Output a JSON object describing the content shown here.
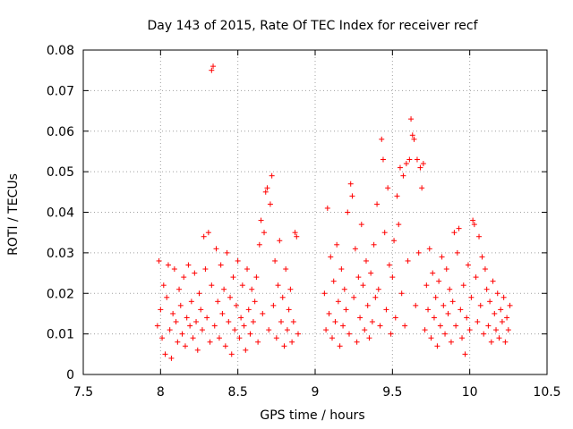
{
  "chart_data": {
    "type": "scatter",
    "title": "Day 143 of 2015, Rate Of TEC Index for receiver recf",
    "xlabel": "GPS time / hours",
    "ylabel": "ROTI / TECUs",
    "xlim": [
      7.5,
      10.5
    ],
    "ylim": [
      0,
      0.08
    ],
    "xticks": [
      "7.5",
      "8",
      "8.5",
      "9",
      "9.5",
      "10",
      "10.5"
    ],
    "yticks": [
      "0",
      "0.01",
      "0.02",
      "0.03",
      "0.04",
      "0.05",
      "0.06",
      "0.07",
      "0.08"
    ],
    "grid": true,
    "marker": "+",
    "marker_color": "#ff0000",
    "series": [
      {
        "name": "ROTI",
        "points": [
          [
            7.98,
            0.012
          ],
          [
            7.99,
            0.028
          ],
          [
            8.0,
            0.016
          ],
          [
            8.01,
            0.009
          ],
          [
            8.02,
            0.022
          ],
          [
            8.03,
            0.005
          ],
          [
            8.04,
            0.019
          ],
          [
            8.05,
            0.027
          ],
          [
            8.06,
            0.011
          ],
          [
            8.07,
            0.004
          ],
          [
            8.08,
            0.015
          ],
          [
            8.09,
            0.026
          ],
          [
            8.1,
            0.013
          ],
          [
            8.11,
            0.008
          ],
          [
            8.12,
            0.021
          ],
          [
            8.13,
            0.017
          ],
          [
            8.14,
            0.01
          ],
          [
            8.15,
            0.024
          ],
          [
            8.16,
            0.007
          ],
          [
            8.17,
            0.014
          ],
          [
            8.18,
            0.027
          ],
          [
            8.19,
            0.012
          ],
          [
            8.2,
            0.018
          ],
          [
            8.21,
            0.009
          ],
          [
            8.22,
            0.025
          ],
          [
            8.23,
            0.013
          ],
          [
            8.24,
            0.006
          ],
          [
            8.25,
            0.02
          ],
          [
            8.26,
            0.016
          ],
          [
            8.27,
            0.011
          ],
          [
            8.28,
            0.034
          ],
          [
            8.29,
            0.026
          ],
          [
            8.3,
            0.014
          ],
          [
            8.31,
            0.035
          ],
          [
            8.32,
            0.008
          ],
          [
            8.33,
            0.022
          ],
          [
            8.33,
            0.075
          ],
          [
            8.34,
            0.076
          ],
          [
            8.35,
            0.012
          ],
          [
            8.36,
            0.031
          ],
          [
            8.37,
            0.018
          ],
          [
            8.38,
            0.009
          ],
          [
            8.39,
            0.027
          ],
          [
            8.4,
            0.015
          ],
          [
            8.41,
            0.021
          ],
          [
            8.42,
            0.007
          ],
          [
            8.43,
            0.03
          ],
          [
            8.44,
            0.013
          ],
          [
            8.45,
            0.019
          ],
          [
            8.46,
            0.005
          ],
          [
            8.47,
            0.024
          ],
          [
            8.48,
            0.011
          ],
          [
            8.49,
            0.017
          ],
          [
            8.5,
            0.028
          ],
          [
            8.51,
            0.009
          ],
          [
            8.52,
            0.014
          ],
          [
            8.53,
            0.022
          ],
          [
            8.54,
            0.012
          ],
          [
            8.55,
            0.006
          ],
          [
            8.56,
            0.026
          ],
          [
            8.57,
            0.016
          ],
          [
            8.58,
            0.01
          ],
          [
            8.59,
            0.021
          ],
          [
            8.6,
            0.013
          ],
          [
            8.61,
            0.018
          ],
          [
            8.62,
            0.024
          ],
          [
            8.63,
            0.008
          ],
          [
            8.64,
            0.032
          ],
          [
            8.65,
            0.038
          ],
          [
            8.66,
            0.015
          ],
          [
            8.67,
            0.035
          ],
          [
            8.68,
            0.045
          ],
          [
            8.69,
            0.046
          ],
          [
            8.7,
            0.011
          ],
          [
            8.71,
            0.042
          ],
          [
            8.72,
            0.049
          ],
          [
            8.73,
            0.017
          ],
          [
            8.74,
            0.028
          ],
          [
            8.75,
            0.009
          ],
          [
            8.76,
            0.022
          ],
          [
            8.77,
            0.033
          ],
          [
            8.78,
            0.013
          ],
          [
            8.79,
            0.019
          ],
          [
            8.8,
            0.007
          ],
          [
            8.81,
            0.026
          ],
          [
            8.82,
            0.011
          ],
          [
            8.83,
            0.016
          ],
          [
            8.84,
            0.021
          ],
          [
            8.85,
            0.008
          ],
          [
            8.86,
            0.013
          ],
          [
            8.87,
            0.035
          ],
          [
            8.88,
            0.034
          ],
          [
            8.89,
            0.01
          ],
          [
            9.06,
            0.02
          ],
          [
            9.07,
            0.011
          ],
          [
            9.08,
            0.041
          ],
          [
            9.09,
            0.015
          ],
          [
            9.1,
            0.029
          ],
          [
            9.11,
            0.009
          ],
          [
            9.12,
            0.023
          ],
          [
            9.13,
            0.013
          ],
          [
            9.14,
            0.032
          ],
          [
            9.15,
            0.018
          ],
          [
            9.16,
            0.007
          ],
          [
            9.17,
            0.026
          ],
          [
            9.18,
            0.012
          ],
          [
            9.19,
            0.021
          ],
          [
            9.2,
            0.016
          ],
          [
            9.21,
            0.04
          ],
          [
            9.22,
            0.01
          ],
          [
            9.23,
            0.047
          ],
          [
            9.24,
            0.044
          ],
          [
            9.25,
            0.019
          ],
          [
            9.26,
            0.031
          ],
          [
            9.27,
            0.008
          ],
          [
            9.28,
            0.024
          ],
          [
            9.29,
            0.014
          ],
          [
            9.3,
            0.037
          ],
          [
            9.31,
            0.022
          ],
          [
            9.32,
            0.011
          ],
          [
            9.33,
            0.028
          ],
          [
            9.34,
            0.017
          ],
          [
            9.35,
            0.009
          ],
          [
            9.36,
            0.025
          ],
          [
            9.37,
            0.013
          ],
          [
            9.38,
            0.032
          ],
          [
            9.39,
            0.019
          ],
          [
            9.4,
            0.042
          ],
          [
            9.41,
            0.021
          ],
          [
            9.42,
            0.012
          ],
          [
            9.43,
            0.058
          ],
          [
            9.44,
            0.053
          ],
          [
            9.45,
            0.035
          ],
          [
            9.46,
            0.016
          ],
          [
            9.47,
            0.046
          ],
          [
            9.48,
            0.027
          ],
          [
            9.49,
            0.01
          ],
          [
            9.5,
            0.024
          ],
          [
            9.51,
            0.033
          ],
          [
            9.52,
            0.014
          ],
          [
            9.53,
            0.044
          ],
          [
            9.54,
            0.037
          ],
          [
            9.55,
            0.051
          ],
          [
            9.56,
            0.02
          ],
          [
            9.57,
            0.049
          ],
          [
            9.58,
            0.012
          ],
          [
            9.59,
            0.052
          ],
          [
            9.6,
            0.028
          ],
          [
            9.61,
            0.053
          ],
          [
            9.62,
            0.063
          ],
          [
            9.63,
            0.059
          ],
          [
            9.64,
            0.058
          ],
          [
            9.65,
            0.017
          ],
          [
            9.66,
            0.053
          ],
          [
            9.67,
            0.03
          ],
          [
            9.68,
            0.051
          ],
          [
            9.69,
            0.046
          ],
          [
            9.7,
            0.052
          ],
          [
            9.71,
            0.011
          ],
          [
            9.72,
            0.022
          ],
          [
            9.73,
            0.016
          ],
          [
            9.74,
            0.031
          ],
          [
            9.75,
            0.009
          ],
          [
            9.76,
            0.025
          ],
          [
            9.77,
            0.014
          ],
          [
            9.78,
            0.019
          ],
          [
            9.79,
            0.007
          ],
          [
            9.8,
            0.023
          ],
          [
            9.81,
            0.012
          ],
          [
            9.82,
            0.029
          ],
          [
            9.83,
            0.017
          ],
          [
            9.84,
            0.01
          ],
          [
            9.85,
            0.026
          ],
          [
            9.86,
            0.015
          ],
          [
            9.87,
            0.021
          ],
          [
            9.88,
            0.008
          ],
          [
            9.89,
            0.018
          ],
          [
            9.9,
            0.035
          ],
          [
            9.91,
            0.012
          ],
          [
            9.92,
            0.03
          ],
          [
            9.93,
            0.036
          ],
          [
            9.94,
            0.016
          ],
          [
            9.95,
            0.009
          ],
          [
            9.96,
            0.022
          ],
          [
            9.97,
            0.005
          ],
          [
            9.98,
            0.014
          ],
          [
            9.99,
            0.027
          ],
          [
            10.0,
            0.011
          ],
          [
            10.01,
            0.019
          ],
          [
            10.02,
            0.038
          ],
          [
            10.03,
            0.037
          ],
          [
            10.04,
            0.024
          ],
          [
            10.05,
            0.013
          ],
          [
            10.06,
            0.034
          ],
          [
            10.07,
            0.017
          ],
          [
            10.08,
            0.029
          ],
          [
            10.09,
            0.01
          ],
          [
            10.1,
            0.026
          ],
          [
            10.11,
            0.021
          ],
          [
            10.12,
            0.012
          ],
          [
            10.13,
            0.018
          ],
          [
            10.14,
            0.008
          ],
          [
            10.15,
            0.023
          ],
          [
            10.16,
            0.015
          ],
          [
            10.17,
            0.011
          ],
          [
            10.18,
            0.02
          ],
          [
            10.19,
            0.009
          ],
          [
            10.2,
            0.016
          ],
          [
            10.21,
            0.013
          ],
          [
            10.22,
            0.019
          ],
          [
            10.23,
            0.008
          ],
          [
            10.24,
            0.014
          ],
          [
            10.25,
            0.011
          ],
          [
            10.26,
            0.017
          ]
        ]
      }
    ]
  }
}
